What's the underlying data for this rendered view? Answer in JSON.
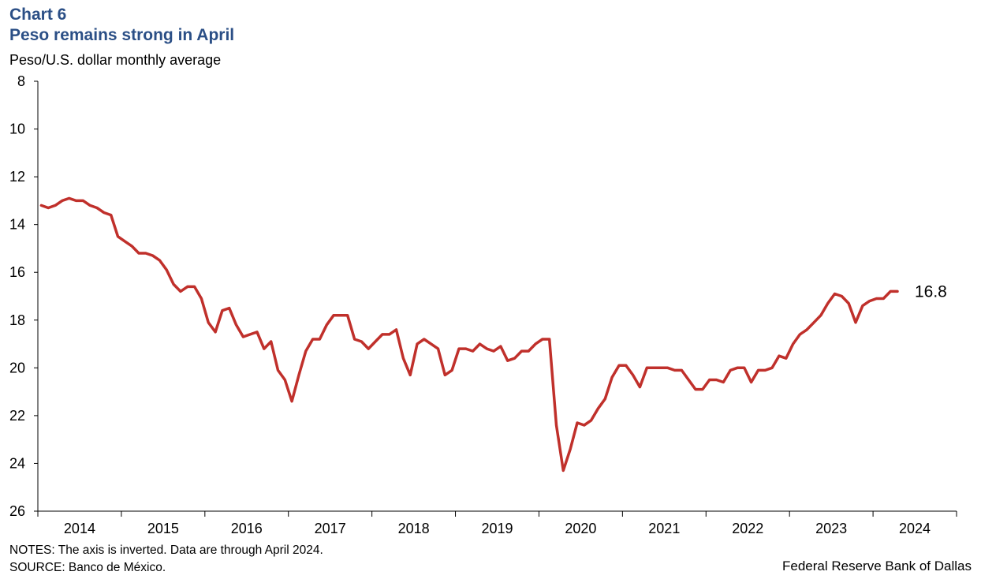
{
  "header": {
    "chart_label": "Chart 6",
    "title": "Peso remains strong in April",
    "units": "Peso/U.S. dollar monthly  average"
  },
  "footer": {
    "notes": "NOTES: The axis is inverted. Data are through April 2024.",
    "source": "SOURCE: Banco de México.",
    "credit": "Federal Reserve Bank of Dallas"
  },
  "chart_data": {
    "type": "line",
    "title": "Peso remains strong in April",
    "ylabel": "Peso/U.S. dollar monthly  average",
    "y_inverted": true,
    "ylim": [
      8,
      26
    ],
    "yticks": [
      8,
      10,
      12,
      14,
      16,
      18,
      20,
      22,
      24,
      26
    ],
    "xlim": [
      "2014-01",
      "2024-12"
    ],
    "xticks": [
      "2014",
      "2015",
      "2016",
      "2017",
      "2018",
      "2019",
      "2020",
      "2021",
      "2022",
      "2023",
      "2024"
    ],
    "grid": false,
    "line_color": "#c0302b",
    "end_label": "16.8",
    "series": [
      {
        "x": [
          "2014-01",
          "2014-02",
          "2014-03",
          "2014-04",
          "2014-05",
          "2014-06",
          "2014-07",
          "2014-08",
          "2014-09",
          "2014-10",
          "2014-11",
          "2014-12",
          "2015-01",
          "2015-02",
          "2015-03",
          "2015-04",
          "2015-05",
          "2015-06",
          "2015-07",
          "2015-08",
          "2015-09",
          "2015-10",
          "2015-11",
          "2015-12",
          "2016-01",
          "2016-02",
          "2016-03",
          "2016-04",
          "2016-05",
          "2016-06",
          "2016-07",
          "2016-08",
          "2016-09",
          "2016-10",
          "2016-11",
          "2016-12",
          "2017-01",
          "2017-02",
          "2017-03",
          "2017-04",
          "2017-05",
          "2017-06",
          "2017-07",
          "2017-08",
          "2017-09",
          "2017-10",
          "2017-11",
          "2017-12",
          "2018-01",
          "2018-02",
          "2018-03",
          "2018-04",
          "2018-05",
          "2018-06",
          "2018-07",
          "2018-08",
          "2018-09",
          "2018-10",
          "2018-11",
          "2018-12",
          "2019-01",
          "2019-02",
          "2019-03",
          "2019-04",
          "2019-05",
          "2019-06",
          "2019-07",
          "2019-08",
          "2019-09",
          "2019-10",
          "2019-11",
          "2019-12",
          "2020-01",
          "2020-02",
          "2020-03",
          "2020-04",
          "2020-05",
          "2020-06",
          "2020-07",
          "2020-08",
          "2020-09",
          "2020-10",
          "2020-11",
          "2020-12",
          "2021-01",
          "2021-02",
          "2021-03",
          "2021-04",
          "2021-05",
          "2021-06",
          "2021-07",
          "2021-08",
          "2021-09",
          "2021-10",
          "2021-11",
          "2021-12",
          "2022-01",
          "2022-02",
          "2022-03",
          "2022-04",
          "2022-05",
          "2022-06",
          "2022-07",
          "2022-08",
          "2022-09",
          "2022-10",
          "2022-11",
          "2022-12",
          "2023-01",
          "2023-02",
          "2023-03",
          "2023-04",
          "2023-05",
          "2023-06",
          "2023-07",
          "2023-08",
          "2023-09",
          "2023-10",
          "2023-11",
          "2023-12",
          "2024-01",
          "2024-02",
          "2024-03",
          "2024-04"
        ],
        "values": [
          13.2,
          13.3,
          13.2,
          13.0,
          12.9,
          13.0,
          13.0,
          13.2,
          13.3,
          13.5,
          13.6,
          14.5,
          14.7,
          14.9,
          15.2,
          15.2,
          15.3,
          15.5,
          15.9,
          16.5,
          16.8,
          16.6,
          16.6,
          17.1,
          18.1,
          18.5,
          17.6,
          17.5,
          18.2,
          18.7,
          18.6,
          18.5,
          19.2,
          18.9,
          20.1,
          20.5,
          21.4,
          20.3,
          19.3,
          18.8,
          18.8,
          18.2,
          17.8,
          17.8,
          17.8,
          18.8,
          18.9,
          19.2,
          18.9,
          18.6,
          18.6,
          18.4,
          19.6,
          20.3,
          19.0,
          18.8,
          19.0,
          19.2,
          20.3,
          20.1,
          19.2,
          19.2,
          19.3,
          19.0,
          19.2,
          19.3,
          19.1,
          19.7,
          19.6,
          19.3,
          19.3,
          19.0,
          18.8,
          18.8,
          22.4,
          24.3,
          23.4,
          22.3,
          22.4,
          22.2,
          21.7,
          21.3,
          20.4,
          19.9,
          19.9,
          20.3,
          20.8,
          20.0,
          20.0,
          20.0,
          20.0,
          20.1,
          20.1,
          20.5,
          20.9,
          20.9,
          20.5,
          20.5,
          20.6,
          20.1,
          20.0,
          20.0,
          20.6,
          20.1,
          20.1,
          20.0,
          19.5,
          19.6,
          19.0,
          18.6,
          18.4,
          18.1,
          17.8,
          17.3,
          16.9,
          17.0,
          17.3,
          18.1,
          17.4,
          17.2,
          17.1,
          17.1,
          16.8,
          16.8
        ]
      }
    ]
  }
}
